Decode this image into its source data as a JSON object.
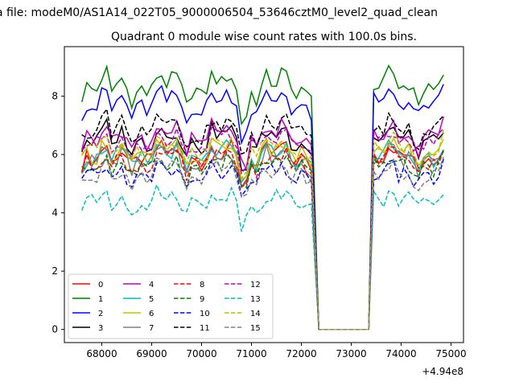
{
  "figure": {
    "suptitle": "a file: modeM0/AS1A14_022T05_9000006504_53646cztM0_level2_quad_clean",
    "offset_label": "+4.94e8"
  },
  "chart_data": {
    "type": "line",
    "title": "Quadrant 0 module wise count rates with 100.0s bins.",
    "xlabel": "",
    "ylabel": "",
    "xlim": [
      67250,
      75250
    ],
    "ylim": [
      -0.45,
      9.7
    ],
    "x_offset": 494000000,
    "xticks": [
      68000,
      69000,
      70000,
      71000,
      72000,
      73000,
      74000,
      75000
    ],
    "yticks": [
      0,
      2,
      4,
      6,
      8
    ],
    "grid": false,
    "legend": {
      "location": "lower-left",
      "columns": 4
    },
    "gap": {
      "start": 72350,
      "end": 73350,
      "value": 0
    },
    "segments": [
      {
        "x_start": 67600,
        "x_end": 72250,
        "step": 100
      },
      {
        "x_start": 73450,
        "x_end": 74900,
        "step": 100
      }
    ],
    "series": [
      {
        "name": "0",
        "color": "#ff0000",
        "dash": "solid",
        "mean": 5.95,
        "amp": 0.35
      },
      {
        "name": "1",
        "color": "#008000",
        "dash": "solid",
        "mean": 8.35,
        "amp": 0.45
      },
      {
        "name": "2",
        "color": "#0000ff",
        "dash": "solid",
        "mean": 7.75,
        "amp": 0.4
      },
      {
        "name": "3",
        "color": "#000000",
        "dash": "solid",
        "mean": 6.55,
        "amp": 0.4
      },
      {
        "name": "4",
        "color": "#bf00bf",
        "dash": "solid",
        "mean": 6.65,
        "amp": 0.4
      },
      {
        "name": "5",
        "color": "#00bfbf",
        "dash": "solid",
        "mean": 5.95,
        "amp": 0.35
      },
      {
        "name": "6",
        "color": "#bfbf00",
        "dash": "solid",
        "mean": 6.05,
        "amp": 0.35
      },
      {
        "name": "7",
        "color": "#808080",
        "dash": "solid",
        "mean": 5.85,
        "amp": 0.35
      },
      {
        "name": "8",
        "color": "#ff0000",
        "dash": "dashed",
        "mean": 5.75,
        "amp": 0.3
      },
      {
        "name": "9",
        "color": "#008000",
        "dash": "dashed",
        "mean": 5.6,
        "amp": 0.3
      },
      {
        "name": "10",
        "color": "#0000ff",
        "dash": "dashed",
        "mean": 5.3,
        "amp": 0.3
      },
      {
        "name": "11",
        "color": "#000000",
        "dash": "dashed",
        "mean": 6.85,
        "amp": 0.4
      },
      {
        "name": "12",
        "color": "#bf00bf",
        "dash": "dashed",
        "mean": 6.45,
        "amp": 0.35
      },
      {
        "name": "13",
        "color": "#00bfbf",
        "dash": "dashed",
        "mean": 4.45,
        "amp": 0.3
      },
      {
        "name": "14",
        "color": "#bfbf00",
        "dash": "dashed",
        "mean": 6.25,
        "amp": 0.35
      },
      {
        "name": "15",
        "color": "#808080",
        "dash": "dashed",
        "mean": 5.35,
        "amp": 0.35
      }
    ]
  }
}
